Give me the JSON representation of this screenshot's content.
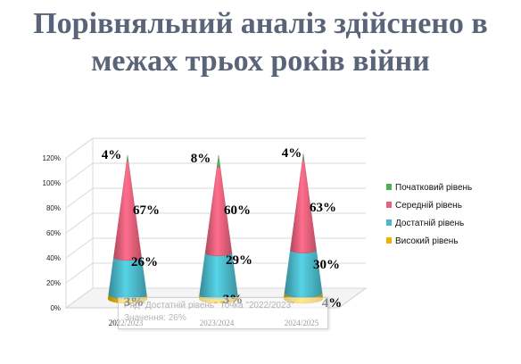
{
  "title_line1": "Порівняльний аналіз здійснено в",
  "title_line2": "межах трьох років війни",
  "chart_data": {
    "type": "bar",
    "shape": "cone",
    "stacked": true,
    "categories": [
      "2022/2023",
      "2023/2024",
      "2024/2025"
    ],
    "y_ticks": [
      "0%",
      "20%",
      "40%",
      "60%",
      "80%",
      "100%",
      "120%"
    ],
    "ylim": [
      0,
      1.2
    ],
    "series": [
      {
        "name": "Високий рівень",
        "color": "#f0b400",
        "values": [
          0.03,
          0.03,
          0.04
        ],
        "labels": [
          "3%",
          "3%",
          "4%"
        ]
      },
      {
        "name": "Достатній рівень",
        "color": "#4bb8c9",
        "values": [
          0.26,
          0.29,
          0.3
        ],
        "labels": [
          "26%",
          "29%",
          "30%"
        ]
      },
      {
        "name": "Середній рівень",
        "color": "#e8607a",
        "values": [
          0.67,
          0.6,
          0.63
        ],
        "labels": [
          "67%",
          "60%",
          "63%"
        ]
      },
      {
        "name": "Початковий рівень",
        "color": "#4caf50",
        "values": [
          0.04,
          0.08,
          0.04
        ],
        "labels": [
          "4%",
          "8%",
          "4%"
        ]
      }
    ],
    "legend_order": [
      "Початковий рівень",
      "Середній рівень",
      "Достатній рівень",
      "Високий рівень"
    ],
    "legend_position": "right",
    "grid": true
  },
  "tooltip": {
    "line1": "Ряд \"Достатній рівень\" Точка \"2022/2023\"",
    "line2": "Значення: 26%"
  }
}
